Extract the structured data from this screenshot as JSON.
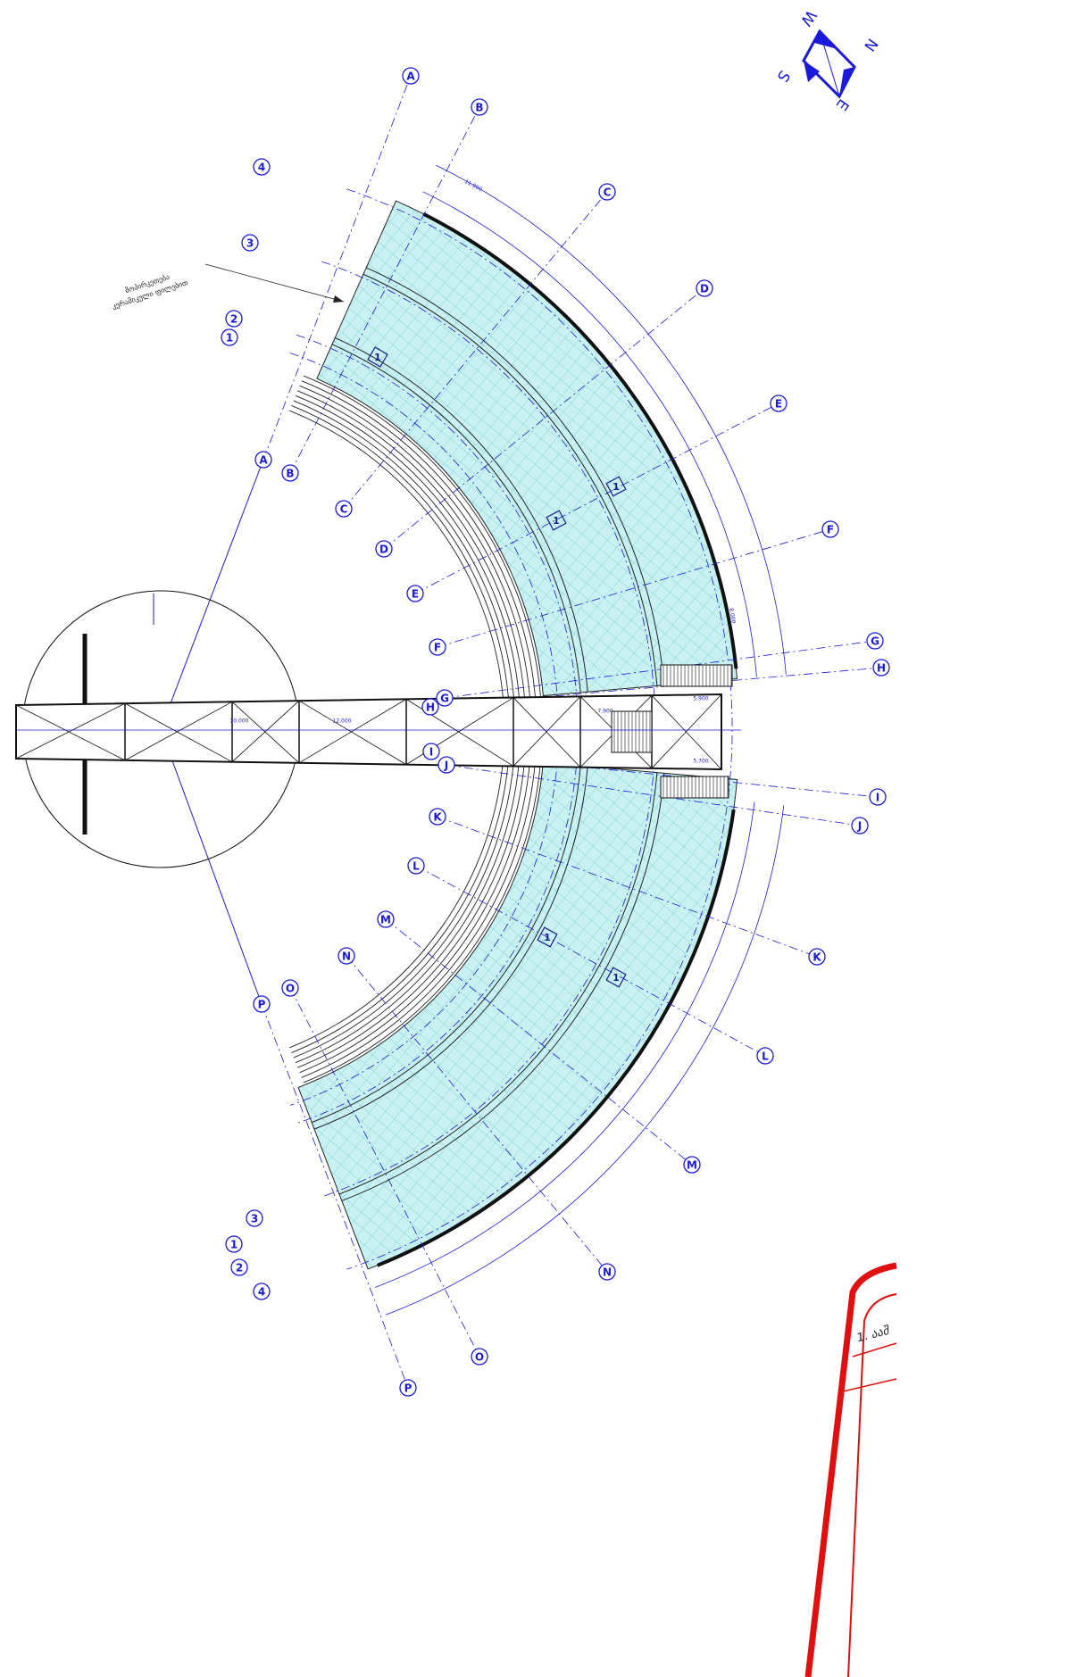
{
  "compass": {
    "north": "N",
    "east": "E",
    "south": "S",
    "west": "W"
  },
  "annotation": [
    "მოპირკეთება",
    "კერამიკული ფილებით"
  ],
  "axes_letters": [
    "A",
    "B",
    "C",
    "D",
    "E",
    "F",
    "G",
    "H",
    "I",
    "J",
    "K",
    "L",
    "M",
    "N",
    "O",
    "P"
  ],
  "axes_numbers": [
    "1",
    "2",
    "3",
    "4"
  ],
  "room_tags": [
    "1",
    "1",
    "1",
    "1",
    "1"
  ],
  "dimensions": [
    "10.000",
    "12.000",
    "5.900",
    "7.900",
    "5.700",
    "11.900",
    "8.000"
  ],
  "title_block": {
    "line1": "1. ააშ"
  }
}
